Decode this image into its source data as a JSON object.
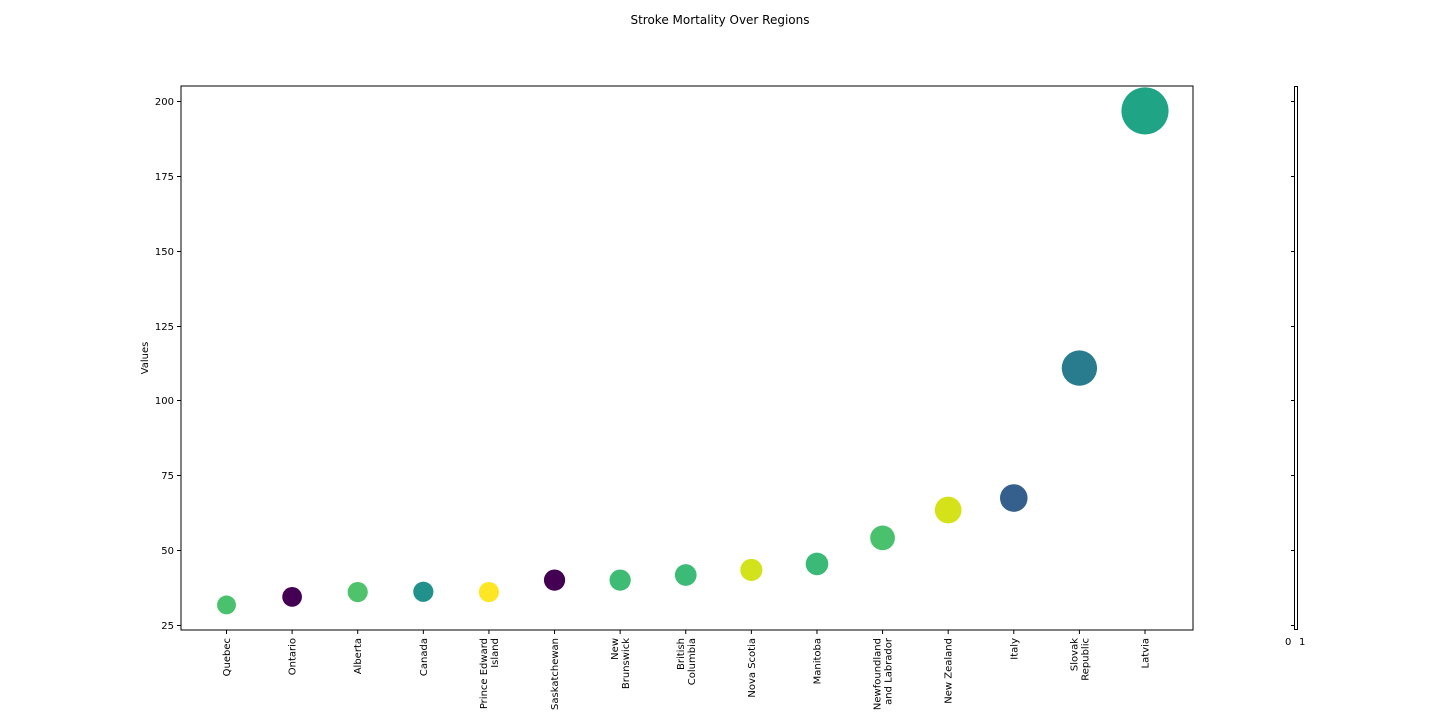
{
  "chart_data": {
    "type": "scatter",
    "title": "Stroke Mortality Over Regions",
    "xlabel": "",
    "ylabel": "Values",
    "ylim": [
      23.5,
      205
    ],
    "yticks": [
      25,
      50,
      75,
      100,
      125,
      150,
      175,
      200
    ],
    "grid": false,
    "categories": [
      "Quebec",
      "Ontario",
      "Alberta",
      "Canada",
      "Prince Edward Island",
      "Saskatchewan",
      "New Brunswick",
      "British Columbia",
      "Nova Scotia",
      "Manitoba",
      "Newfoundland and Labrador",
      "New Zealand",
      "Italy",
      "Slovak Republic",
      "Latvia"
    ],
    "values": [
      31.7,
      34.4,
      36.0,
      36.1,
      36.0,
      40.0,
      40.0,
      41.7,
      43.4,
      45.4,
      54.1,
      63.4,
      67.4,
      110.8,
      196.7
    ],
    "colors": [
      "#4ac16d",
      "#440154",
      "#4ec36b",
      "#21918c",
      "#fde725",
      "#440154",
      "#3fbc73",
      "#3bbb75",
      "#d2e21b",
      "#3aba76",
      "#4ac16d",
      "#d5e21a",
      "#355f8d",
      "#287c8e",
      "#20a486"
    ],
    "marker_size_encodes": "value",
    "colorbar": {
      "tick_labels": [
        "0",
        "1"
      ]
    }
  }
}
